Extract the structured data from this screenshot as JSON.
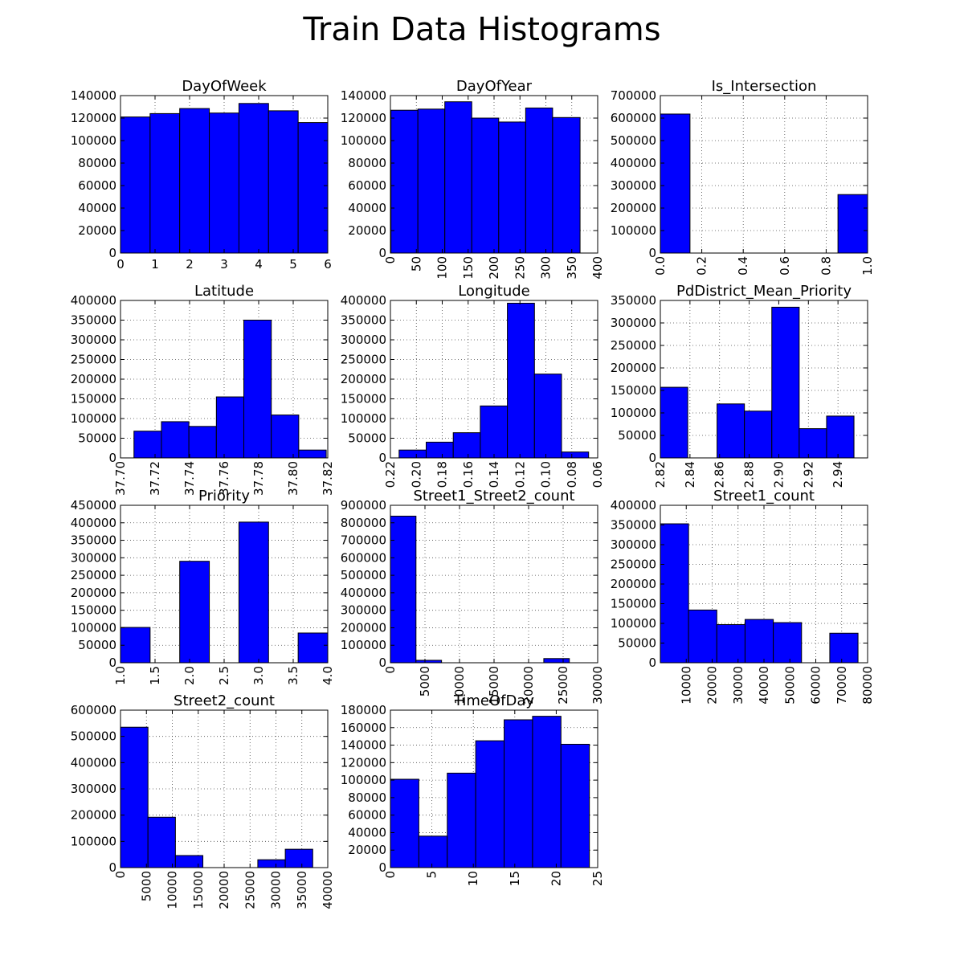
{
  "figure_title": "Train Data Histograms",
  "colors": {
    "bar_fill": "#0000ff",
    "bar_edge": "#000000",
    "grid": "#000000",
    "background": "#ffffff"
  },
  "chart_data": [
    {
      "type": "bar",
      "title": "DayOfWeek",
      "xlim": [
        0,
        6
      ],
      "ylim": [
        0,
        140000
      ],
      "xticks": [
        "0",
        "1",
        "2",
        "3",
        "4",
        "5",
        "6"
      ],
      "xtick_rotation": 0,
      "yticks": [
        "0",
        "20000",
        "40000",
        "60000",
        "80000",
        "100000",
        "120000",
        "140000"
      ],
      "grid": true,
      "bins": [
        {
          "x0": 0,
          "x1": 0.857,
          "value": 121000
        },
        {
          "x0": 0.857,
          "x1": 1.714,
          "value": 124000
        },
        {
          "x0": 1.714,
          "x1": 2.571,
          "value": 128500
        },
        {
          "x0": 2.571,
          "x1": 3.429,
          "value": 124500
        },
        {
          "x0": 3.429,
          "x1": 4.286,
          "value": 133000
        },
        {
          "x0": 4.286,
          "x1": 5.143,
          "value": 126500
        },
        {
          "x0": 5.143,
          "x1": 6,
          "value": 116000
        }
      ]
    },
    {
      "type": "bar",
      "title": "DayOfYear",
      "xlim": [
        0,
        400
      ],
      "ylim": [
        0,
        140000
      ],
      "xticks": [
        "0",
        "50",
        "100",
        "150",
        "200",
        "250",
        "300",
        "350",
        "400"
      ],
      "xtick_rotation": -90,
      "yticks": [
        "0",
        "20000",
        "40000",
        "60000",
        "80000",
        "100000",
        "120000",
        "140000"
      ],
      "grid": true,
      "bins": [
        {
          "x0": 1,
          "x1": 53,
          "value": 127000
        },
        {
          "x0": 53,
          "x1": 105,
          "value": 128000
        },
        {
          "x0": 105,
          "x1": 157,
          "value": 134500
        },
        {
          "x0": 157,
          "x1": 209,
          "value": 120000
        },
        {
          "x0": 209,
          "x1": 261,
          "value": 116500
        },
        {
          "x0": 261,
          "x1": 313,
          "value": 129000
        },
        {
          "x0": 313,
          "x1": 366,
          "value": 120500
        }
      ]
    },
    {
      "type": "bar",
      "title": "Is_Intersection",
      "xlim": [
        0,
        1
      ],
      "ylim": [
        0,
        700000
      ],
      "xticks": [
        "0.0",
        "0.2",
        "0.4",
        "0.6",
        "0.8",
        "1.0"
      ],
      "xtick_rotation": -90,
      "yticks": [
        "0",
        "100000",
        "200000",
        "300000",
        "400000",
        "500000",
        "600000",
        "700000"
      ],
      "grid": true,
      "bins": [
        {
          "x0": 0,
          "x1": 0.143,
          "value": 618000
        },
        {
          "x0": 0.857,
          "x1": 1,
          "value": 260000
        }
      ]
    },
    {
      "type": "bar",
      "title": "Latitude",
      "xlim": [
        37.7,
        37.82
      ],
      "ylim": [
        0,
        400000
      ],
      "xticks": [
        "37.70",
        "37.72",
        "37.74",
        "37.76",
        "37.78",
        "37.80",
        "37.82"
      ],
      "xtick_rotation": -90,
      "yticks": [
        "0",
        "50000",
        "100000",
        "150000",
        "200000",
        "250000",
        "300000",
        "350000",
        "400000"
      ],
      "grid": true,
      "bins": [
        {
          "x0": 37.7078,
          "x1": 37.7237,
          "value": 68000
        },
        {
          "x0": 37.7237,
          "x1": 37.7396,
          "value": 92000
        },
        {
          "x0": 37.7396,
          "x1": 37.7555,
          "value": 80000
        },
        {
          "x0": 37.7555,
          "x1": 37.7714,
          "value": 155000
        },
        {
          "x0": 37.7714,
          "x1": 37.7873,
          "value": 350000
        },
        {
          "x0": 37.7873,
          "x1": 37.8032,
          "value": 109000
        },
        {
          "x0": 37.8032,
          "x1": 37.8191,
          "value": 20000
        }
      ]
    },
    {
      "type": "bar",
      "title": "Longitude",
      "xlim": [
        -122.22,
        -122.06
      ],
      "ylim": [
        0,
        400000
      ],
      "xticks": [
        "0.22",
        "0.20",
        "0.18",
        "0.16",
        "0.14",
        "0.12",
        "0.10",
        "0.08",
        "0.06"
      ],
      "xtick_rotation": -90,
      "yticks": [
        "0",
        "50000",
        "100000",
        "150000",
        "200000",
        "250000",
        "300000",
        "350000",
        "400000"
      ],
      "grid": true,
      "bins": [
        {
          "x0": -122.2133,
          "x1": -122.1924,
          "value": 20000
        },
        {
          "x0": -122.1924,
          "x1": -122.1715,
          "value": 40000
        },
        {
          "x0": -122.1715,
          "x1": -122.1506,
          "value": 64000
        },
        {
          "x0": -122.1506,
          "x1": -122.1297,
          "value": 132000
        },
        {
          "x0": -122.1297,
          "x1": -122.1088,
          "value": 393000
        },
        {
          "x0": -122.1088,
          "x1": -122.0879,
          "value": 213000
        },
        {
          "x0": -122.0879,
          "x1": -122.067,
          "value": 15000
        }
      ]
    },
    {
      "type": "bar",
      "title": "PdDistrict_Mean_Priority",
      "xlim": [
        2.82,
        2.96
      ],
      "ylim": [
        0,
        350000
      ],
      "xticks": [
        "2.82",
        "2.84",
        "2.86",
        "2.88",
        "2.90",
        "2.92",
        "2.94"
      ],
      "xtick_rotation": -90,
      "yticks": [
        "0",
        "50000",
        "100000",
        "150000",
        "200000",
        "250000",
        "300000",
        "350000"
      ],
      "grid": true,
      "bins": [
        {
          "x0": 2.82,
          "x1": 2.8385,
          "value": 157000
        },
        {
          "x0": 2.8583,
          "x1": 2.8768,
          "value": 120000
        },
        {
          "x0": 2.8768,
          "x1": 2.8953,
          "value": 104000
        },
        {
          "x0": 2.8953,
          "x1": 2.9138,
          "value": 335000
        },
        {
          "x0": 2.9138,
          "x1": 2.9323,
          "value": 65000
        },
        {
          "x0": 2.9323,
          "x1": 2.9508,
          "value": 93000
        }
      ]
    },
    {
      "type": "bar",
      "title": "Priority",
      "xlim": [
        1.0,
        4.0
      ],
      "ylim": [
        0,
        450000
      ],
      "xticks": [
        "1.0",
        "1.5",
        "2.0",
        "2.5",
        "3.0",
        "3.5",
        "4.0"
      ],
      "xtick_rotation": -90,
      "yticks": [
        "0",
        "50000",
        "100000",
        "150000",
        "200000",
        "250000",
        "300000",
        "350000",
        "400000",
        "450000"
      ],
      "grid": true,
      "bins": [
        {
          "x0": 1.0,
          "x1": 1.4286,
          "value": 101000
        },
        {
          "x0": 1.8571,
          "x1": 2.2857,
          "value": 290000
        },
        {
          "x0": 2.7143,
          "x1": 3.1429,
          "value": 402000
        },
        {
          "x0": 3.5714,
          "x1": 4.0,
          "value": 85000
        }
      ]
    },
    {
      "type": "bar",
      "title": "Street1_Street2_count",
      "xlim": [
        0,
        30000
      ],
      "ylim": [
        0,
        900000
      ],
      "xticks": [
        "0",
        "5000",
        "10000",
        "15000",
        "20000",
        "25000",
        "30000"
      ],
      "xtick_rotation": -90,
      "yticks": [
        "0",
        "100000",
        "200000",
        "300000",
        "400000",
        "500000",
        "600000",
        "700000",
        "800000",
        "900000"
      ],
      "grid": true,
      "bins": [
        {
          "x0": 0,
          "x1": 3700,
          "value": 838000
        },
        {
          "x0": 3700,
          "x1": 7400,
          "value": 14000
        },
        {
          "x0": 7400,
          "x1": 22200,
          "value": 0
        },
        {
          "x0": 22200,
          "x1": 25900,
          "value": 24000
        }
      ]
    },
    {
      "type": "bar",
      "title": "Street1_count",
      "xlim": [
        0,
        80000
      ],
      "ylim": [
        0,
        400000
      ],
      "xticks": [
        "10000",
        "20000",
        "30000",
        "40000",
        "50000",
        "60000",
        "70000",
        "80000"
      ],
      "xtick_rotation": -90,
      "yticks": [
        "0",
        "50000",
        "100000",
        "150000",
        "200000",
        "250000",
        "300000",
        "350000",
        "400000"
      ],
      "grid": true,
      "bins": [
        {
          "x0": 0,
          "x1": 10900,
          "value": 353000
        },
        {
          "x0": 10900,
          "x1": 21800,
          "value": 134000
        },
        {
          "x0": 21800,
          "x1": 32700,
          "value": 97000
        },
        {
          "x0": 32700,
          "x1": 43600,
          "value": 110000
        },
        {
          "x0": 43600,
          "x1": 54500,
          "value": 102000
        },
        {
          "x0": 65400,
          "x1": 76300,
          "value": 75000
        }
      ]
    },
    {
      "type": "bar",
      "title": "Street2_count",
      "xlim": [
        0,
        40000
      ],
      "ylim": [
        0,
        600000
      ],
      "xticks": [
        "0",
        "5000",
        "10000",
        "15000",
        "20000",
        "25000",
        "30000",
        "35000",
        "40000"
      ],
      "xtick_rotation": -90,
      "yticks": [
        "0",
        "100000",
        "200000",
        "300000",
        "400000",
        "500000",
        "600000"
      ],
      "grid": true,
      "bins": [
        {
          "x0": 0,
          "x1": 5300,
          "value": 535000
        },
        {
          "x0": 5300,
          "x1": 10600,
          "value": 192000
        },
        {
          "x0": 10600,
          "x1": 15900,
          "value": 46000
        },
        {
          "x0": 26500,
          "x1": 31800,
          "value": 30000
        },
        {
          "x0": 31800,
          "x1": 37100,
          "value": 70000
        }
      ]
    },
    {
      "type": "bar",
      "title": "TimeOfDay",
      "xlim": [
        0,
        25
      ],
      "ylim": [
        0,
        180000
      ],
      "xticks": [
        "0",
        "5",
        "10",
        "15",
        "20",
        "25"
      ],
      "xtick_rotation": -90,
      "yticks": [
        "0",
        "20000",
        "40000",
        "60000",
        "80000",
        "100000",
        "120000",
        "140000",
        "160000",
        "180000"
      ],
      "grid": true,
      "bins": [
        {
          "x0": 0,
          "x1": 3.4286,
          "value": 101000
        },
        {
          "x0": 3.4286,
          "x1": 6.8571,
          "value": 36000
        },
        {
          "x0": 6.8571,
          "x1": 10.2857,
          "value": 108000
        },
        {
          "x0": 10.2857,
          "x1": 13.7143,
          "value": 145000
        },
        {
          "x0": 13.7143,
          "x1": 17.1429,
          "value": 169000
        },
        {
          "x0": 17.1429,
          "x1": 20.5714,
          "value": 173000
        },
        {
          "x0": 20.5714,
          "x1": 24,
          "value": 141000
        }
      ]
    }
  ]
}
